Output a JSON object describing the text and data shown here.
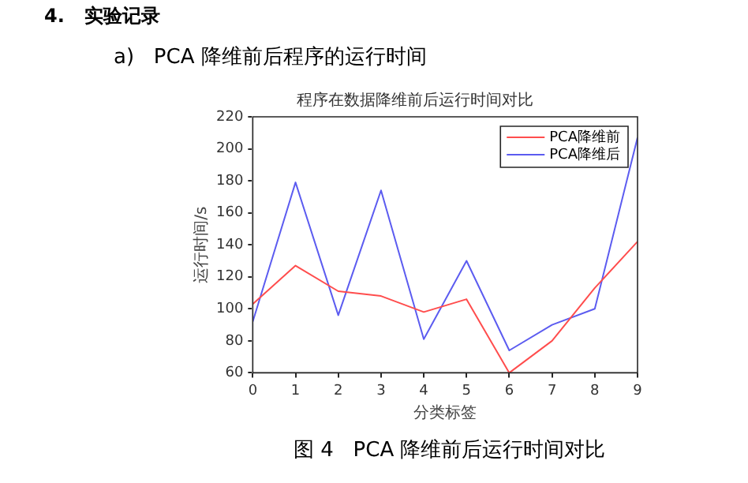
{
  "chart_data": {
    "type": "line",
    "title": "程序在数据降维前后运行时间对比",
    "xlabel": "分类标签",
    "ylabel": "运行时间/s",
    "annotations": [
      "4.   实验记录",
      "a)   PCA 降维前后程序的运行时间",
      "图 4   PCA 降维前后运行时间对比"
    ],
    "x": [
      0,
      1,
      2,
      3,
      4,
      5,
      6,
      7,
      8,
      9
    ],
    "xlim": [
      0,
      9
    ],
    "xticks": [
      0,
      1,
      2,
      3,
      4,
      5,
      6,
      7,
      8,
      9
    ],
    "ylim": [
      60,
      220
    ],
    "yticks": [
      60,
      80,
      100,
      120,
      140,
      160,
      180,
      200,
      220
    ],
    "series": [
      {
        "name": "PCA降维前",
        "color": "#ff4d4d",
        "values": [
          103,
          127,
          111,
          108,
          98,
          106,
          60,
          80,
          113,
          142
        ]
      },
      {
        "name": "PCA降维后",
        "color": "#5c5cf0",
        "values": [
          92,
          179,
          96,
          174,
          81,
          130,
          74,
          90,
          100,
          207
        ]
      }
    ],
    "grid": false,
    "legend": "top right",
    "marker": "none",
    "line_style": "solid"
  }
}
